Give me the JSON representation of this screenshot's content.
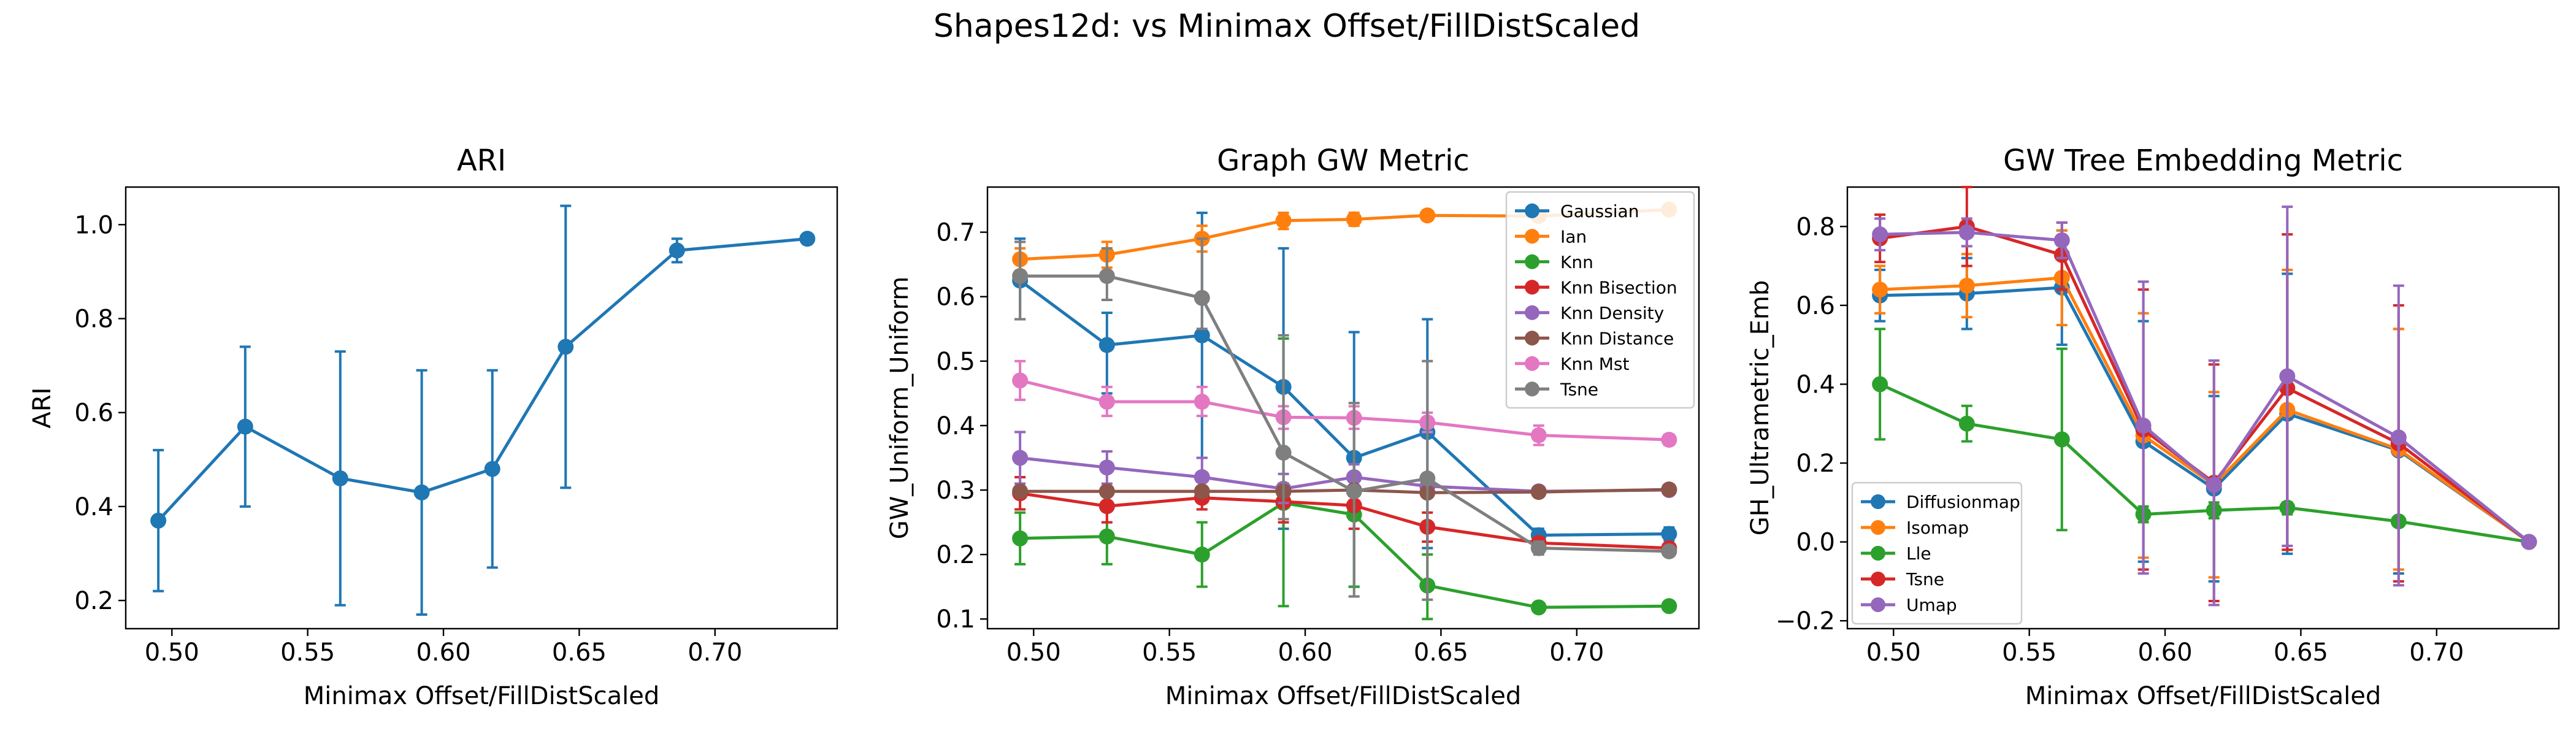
{
  "figure_title": "Shapes12d: vs Minimax Offset/FillDistScaled",
  "chart_data": [
    {
      "type": "line",
      "title": "ARI",
      "xlabel": "Minimax Offset/FillDistScaled",
      "ylabel": "ARI",
      "xlim": [
        0.483,
        0.745
      ],
      "ylim": [
        0.14,
        1.08
      ],
      "xticks": [
        0.5,
        0.55,
        0.6,
        0.65,
        0.7
      ],
      "xtick_labels": [
        "0.50",
        "0.55",
        "0.60",
        "0.65",
        "0.70"
      ],
      "yticks": [
        0.2,
        0.4,
        0.6,
        0.8,
        1.0
      ],
      "ytick_labels": [
        "0.2",
        "0.4",
        "0.6",
        "0.8",
        "1.0"
      ],
      "x": [
        0.495,
        0.527,
        0.562,
        0.592,
        0.618,
        0.645,
        0.686,
        0.734
      ],
      "series": [
        {
          "color": "#1f77b4",
          "values": [
            0.37,
            0.57,
            0.46,
            0.43,
            0.48,
            0.74,
            0.945,
            0.97
          ],
          "err_low": [
            0.22,
            0.4,
            0.19,
            0.17,
            0.27,
            0.44,
            0.92,
            0.96
          ],
          "err_high": [
            0.52,
            0.74,
            0.73,
            0.69,
            0.69,
            1.04,
            0.97,
            0.98
          ]
        }
      ]
    },
    {
      "type": "line",
      "title": "Graph GW Metric",
      "xlabel": "Minimax Offset/FillDistScaled",
      "ylabel": "GW_Uniform_Uniform",
      "xlim": [
        0.483,
        0.745
      ],
      "ylim": [
        0.085,
        0.77
      ],
      "xticks": [
        0.5,
        0.55,
        0.6,
        0.65,
        0.7
      ],
      "xtick_labels": [
        "0.50",
        "0.55",
        "0.60",
        "0.65",
        "0.70"
      ],
      "yticks": [
        0.1,
        0.2,
        0.3,
        0.4,
        0.5,
        0.6,
        0.7
      ],
      "ytick_labels": [
        "0.1",
        "0.2",
        "0.3",
        "0.4",
        "0.5",
        "0.6",
        "0.7"
      ],
      "legend_location": "upper right",
      "x": [
        0.495,
        0.527,
        0.562,
        0.592,
        0.618,
        0.645,
        0.686,
        0.734
      ],
      "series": [
        {
          "name": "Gaussian",
          "color": "#1f77b4",
          "values": [
            0.625,
            0.525,
            0.54,
            0.46,
            0.35,
            0.39,
            0.23,
            0.232
          ],
          "err_low": [
            0.565,
            0.45,
            0.35,
            0.24,
            0.15,
            0.21,
            0.22,
            0.222
          ],
          "err_high": [
            0.69,
            0.575,
            0.73,
            0.675,
            0.545,
            0.565,
            0.24,
            0.242
          ]
        },
        {
          "name": "Ian",
          "color": "#ff7f0e",
          "values": [
            0.658,
            0.665,
            0.69,
            0.718,
            0.72,
            0.726,
            0.725,
            0.735
          ],
          "err_low": [
            0.64,
            0.645,
            0.67,
            0.705,
            0.71,
            0.72,
            0.72,
            0.73
          ],
          "err_high": [
            0.675,
            0.685,
            0.71,
            0.73,
            0.73,
            0.732,
            0.73,
            0.74
          ]
        },
        {
          "name": "Knn",
          "color": "#2ca02c",
          "values": [
            0.225,
            0.228,
            0.2,
            0.28,
            0.262,
            0.152,
            0.118,
            0.12
          ],
          "err_low": [
            0.185,
            0.185,
            0.15,
            0.12,
            0.15,
            0.1,
            0.115,
            0.117
          ],
          "err_high": [
            0.265,
            0.27,
            0.25,
            0.535,
            0.32,
            0.2,
            0.121,
            0.123
          ]
        },
        {
          "name": "Knn Bisection",
          "color": "#d62728",
          "values": [
            0.295,
            0.275,
            0.288,
            0.282,
            0.276,
            0.243,
            0.218,
            0.21
          ],
          "err_low": [
            0.27,
            0.25,
            0.27,
            0.25,
            0.24,
            0.22,
            0.21,
            0.205
          ],
          "err_high": [
            0.32,
            0.3,
            0.305,
            0.31,
            0.305,
            0.265,
            0.226,
            0.215
          ]
        },
        {
          "name": "Knn Density",
          "color": "#9467bd",
          "values": [
            0.35,
            0.335,
            0.32,
            0.302,
            0.32,
            0.306,
            0.298,
            0.3
          ],
          "err_low": [
            0.31,
            0.31,
            0.29,
            0.28,
            0.3,
            0.29,
            0.292,
            0.296
          ],
          "err_high": [
            0.39,
            0.36,
            0.35,
            0.325,
            0.34,
            0.322,
            0.304,
            0.304
          ]
        },
        {
          "name": "Knn Distance",
          "color": "#8c564b",
          "values": [
            0.298,
            0.298,
            0.298,
            0.298,
            0.3,
            0.296,
            0.297,
            0.301
          ],
          "err_low": [
            0.292,
            0.292,
            0.292,
            0.292,
            0.294,
            0.29,
            0.292,
            0.296
          ],
          "err_high": [
            0.304,
            0.304,
            0.304,
            0.304,
            0.306,
            0.302,
            0.302,
            0.306
          ]
        },
        {
          "name": "Knn Mst",
          "color": "#e377c2",
          "values": [
            0.47,
            0.437,
            0.437,
            0.413,
            0.412,
            0.405,
            0.385,
            0.378
          ],
          "err_low": [
            0.44,
            0.415,
            0.415,
            0.395,
            0.395,
            0.39,
            0.37,
            0.37
          ],
          "err_high": [
            0.5,
            0.46,
            0.46,
            0.43,
            0.43,
            0.42,
            0.4,
            0.386
          ]
        },
        {
          "name": "Tsne",
          "color": "#7f7f7f",
          "values": [
            0.632,
            0.632,
            0.598,
            0.358,
            0.298,
            0.318,
            0.21,
            0.205
          ],
          "err_low": [
            0.565,
            0.595,
            0.55,
            0.255,
            0.135,
            0.13,
            0.2,
            0.198
          ],
          "err_high": [
            0.685,
            0.675,
            0.69,
            0.54,
            0.435,
            0.5,
            0.22,
            0.212
          ]
        }
      ]
    },
    {
      "type": "line",
      "title": "GW Tree Embedding Metric",
      "xlabel": "Minimax Offset/FillDistScaled",
      "ylabel": "GH_Ultrametric_Emb",
      "xlim": [
        0.483,
        0.745
      ],
      "ylim": [
        -0.22,
        0.9
      ],
      "xticks": [
        0.5,
        0.55,
        0.6,
        0.65,
        0.7
      ],
      "xtick_labels": [
        "0.50",
        "0.55",
        "0.60",
        "0.65",
        "0.70"
      ],
      "yticks": [
        -0.2,
        0.0,
        0.2,
        0.4,
        0.6,
        0.8
      ],
      "ytick_labels": [
        "−0.2",
        "0.0",
        "0.2",
        "0.4",
        "0.6",
        "0.8"
      ],
      "legend_location": "lower left",
      "x": [
        0.495,
        0.527,
        0.562,
        0.592,
        0.618,
        0.645,
        0.686,
        0.734
      ],
      "series": [
        {
          "name": "Diffusionmap",
          "color": "#1f77b4",
          "values": [
            0.625,
            0.63,
            0.645,
            0.255,
            0.135,
            0.325,
            0.232,
            0.0
          ],
          "err_low": [
            0.56,
            0.54,
            0.5,
            -0.05,
            -0.1,
            -0.03,
            -0.08,
            -0.005
          ],
          "err_high": [
            0.69,
            0.72,
            0.79,
            0.56,
            0.37,
            0.68,
            0.54,
            0.005
          ]
        },
        {
          "name": "Isomap",
          "color": "#ff7f0e",
          "values": [
            0.64,
            0.65,
            0.67,
            0.27,
            0.145,
            0.335,
            0.235,
            0.0
          ],
          "err_low": [
            0.58,
            0.57,
            0.55,
            -0.04,
            -0.09,
            -0.02,
            -0.07,
            -0.005
          ],
          "err_high": [
            0.7,
            0.73,
            0.79,
            0.58,
            0.38,
            0.69,
            0.54,
            0.005
          ]
        },
        {
          "name": "Lle",
          "color": "#2ca02c",
          "values": [
            0.4,
            0.3,
            0.26,
            0.07,
            0.08,
            0.087,
            0.052,
            0.0
          ],
          "err_low": [
            0.26,
            0.255,
            0.03,
            0.05,
            0.06,
            0.07,
            0.04,
            -0.005
          ],
          "err_high": [
            0.54,
            0.345,
            0.49,
            0.09,
            0.1,
            0.1,
            0.064,
            0.005
          ]
        },
        {
          "name": "Tsne",
          "color": "#d62728",
          "values": [
            0.77,
            0.8,
            0.728,
            0.285,
            0.15,
            0.39,
            0.25,
            0.0
          ],
          "err_low": [
            0.71,
            0.7,
            0.64,
            -0.07,
            -0.15,
            -0.02,
            -0.1,
            -0.005
          ],
          "err_high": [
            0.83,
            0.9,
            0.81,
            0.64,
            0.45,
            0.78,
            0.6,
            0.005
          ]
        },
        {
          "name": "Umap",
          "color": "#9467bd",
          "values": [
            0.78,
            0.785,
            0.765,
            0.295,
            0.145,
            0.42,
            0.265,
            0.0
          ],
          "err_low": [
            0.74,
            0.75,
            0.72,
            -0.08,
            -0.16,
            -0.01,
            -0.11,
            -0.005
          ],
          "err_high": [
            0.82,
            0.82,
            0.81,
            0.66,
            0.46,
            0.85,
            0.65,
            0.005
          ]
        }
      ]
    }
  ]
}
